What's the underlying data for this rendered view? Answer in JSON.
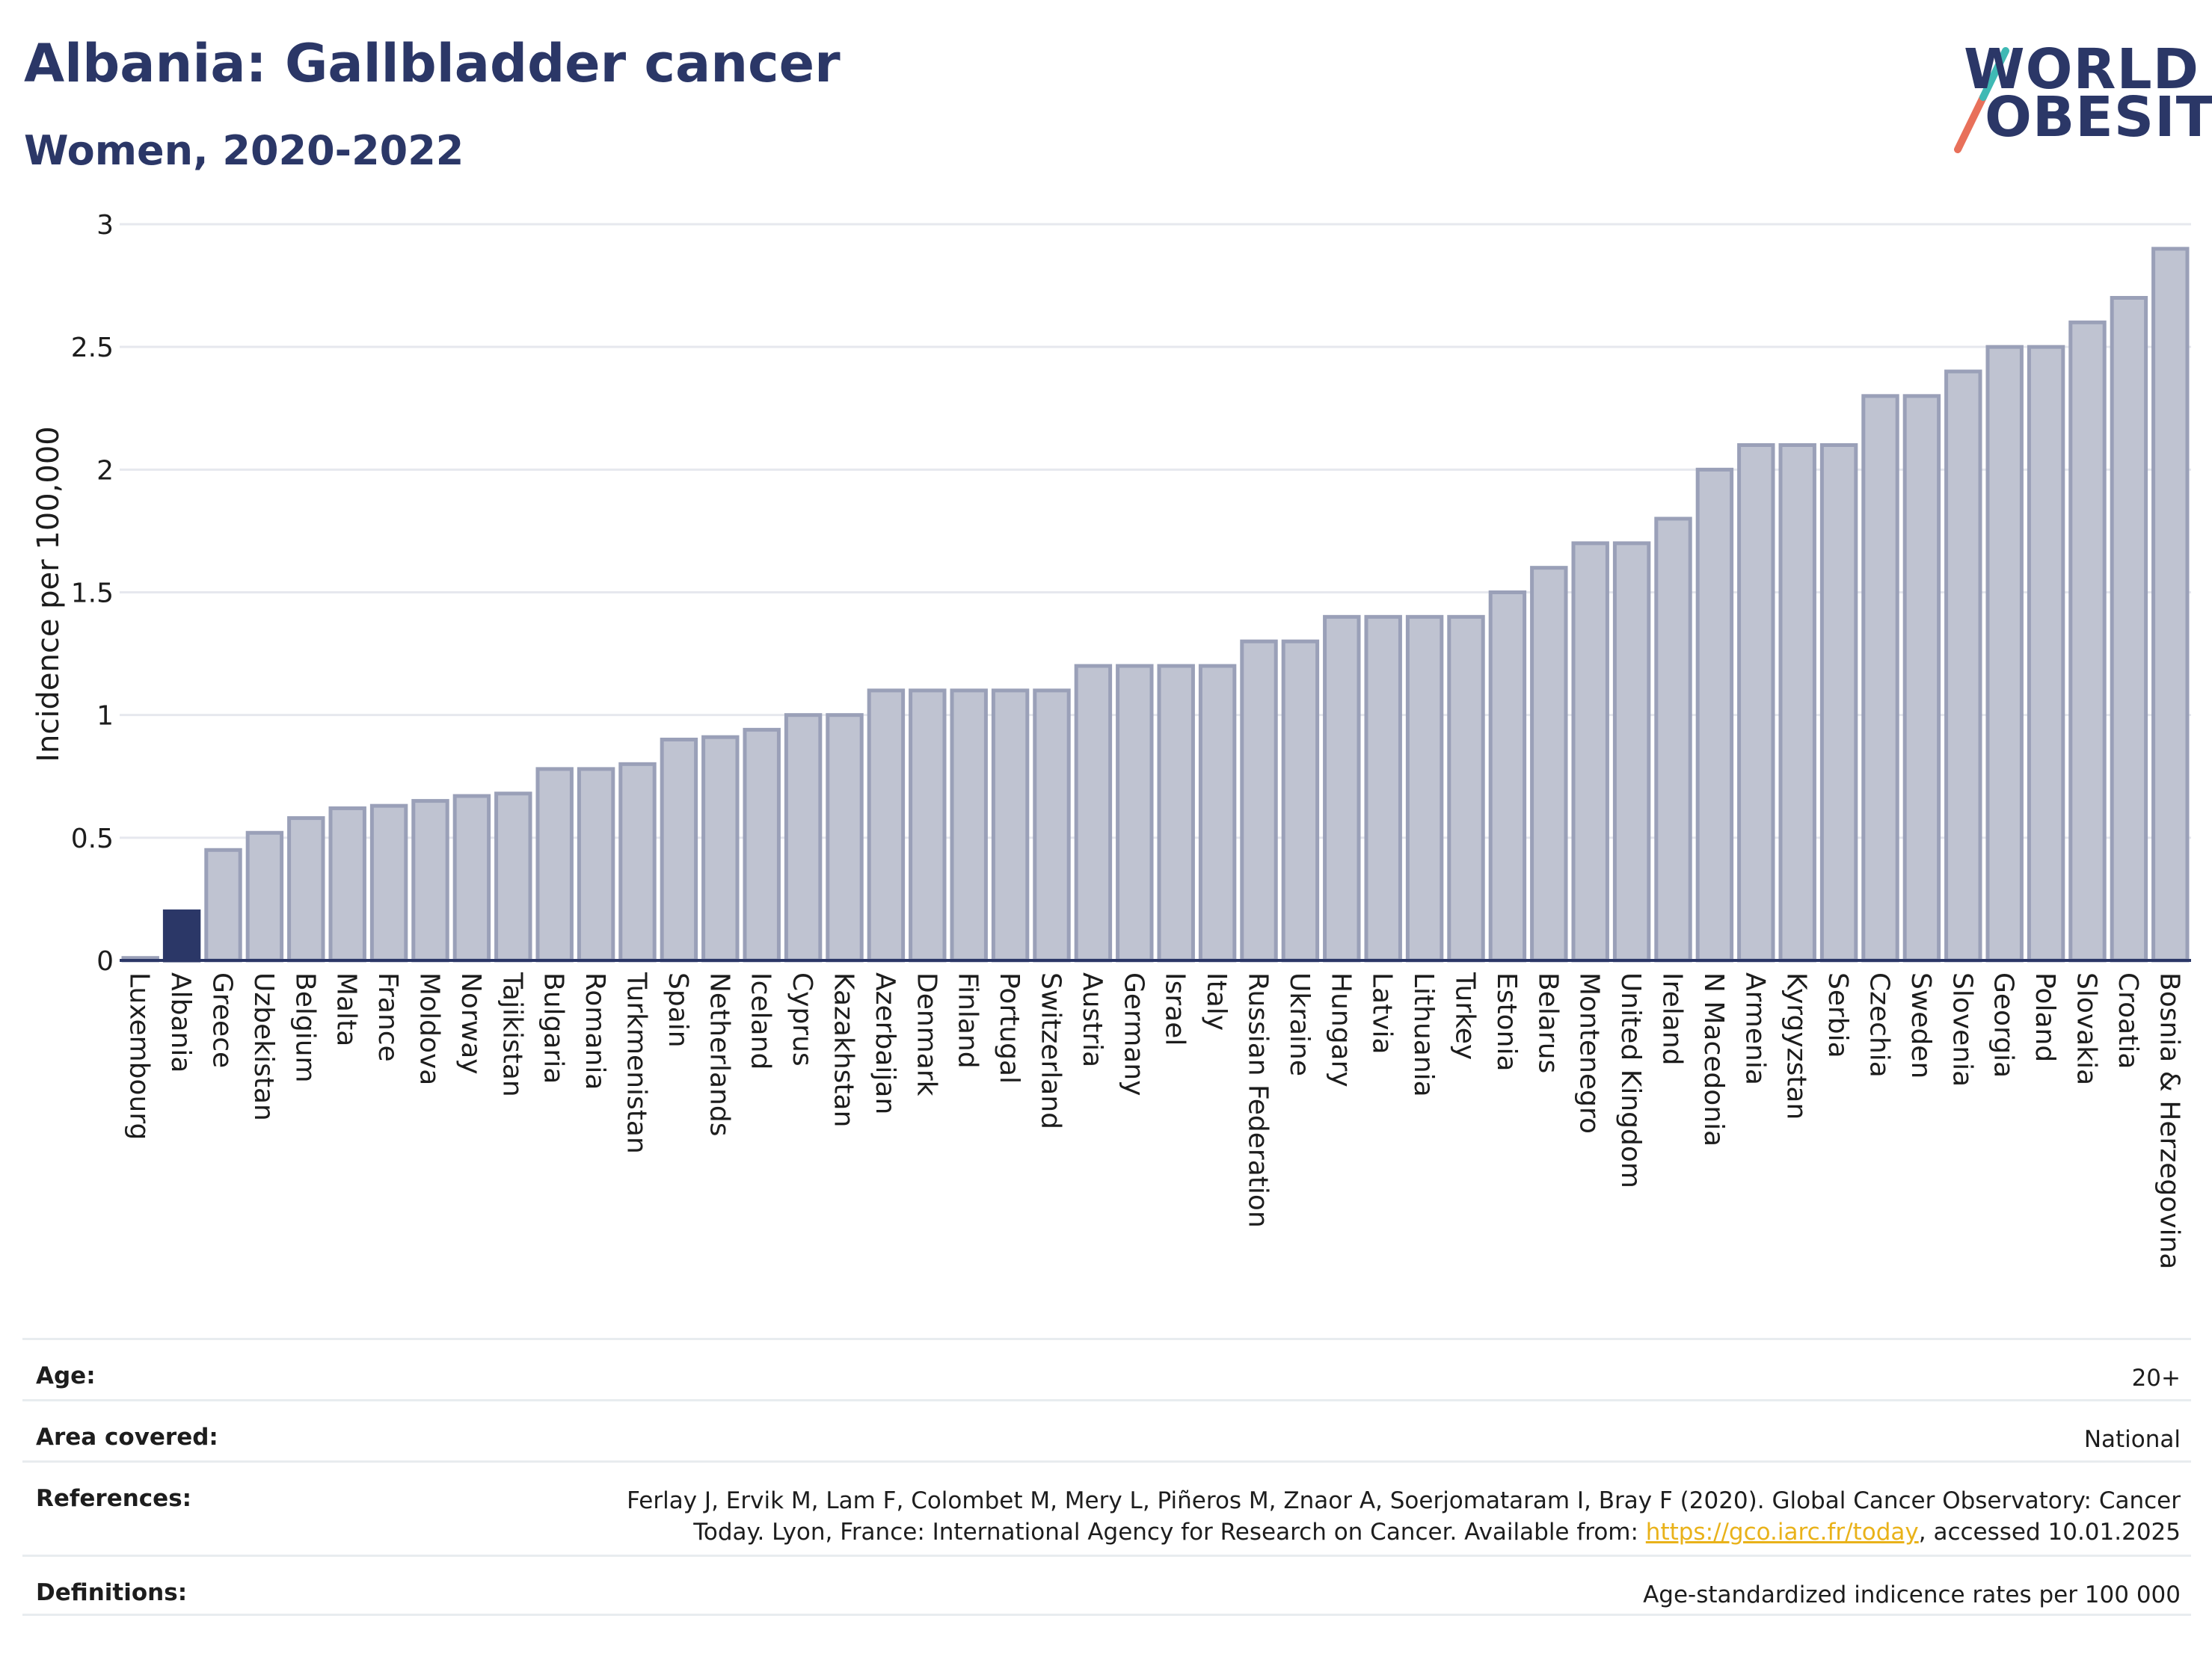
{
  "header": {
    "title": "Albania: Gallbladder cancer",
    "subtitle": "Women, 2020-2022"
  },
  "logo": {
    "line1": "WORLD",
    "line2": "OBESITY",
    "slash_colors": [
      "#e8705a",
      "#3fb9b4"
    ]
  },
  "colors": {
    "highlight_bar": "#2b3767",
    "other_bar_fill": "#bfc3d1",
    "other_bar_stroke": "#9aa0b8",
    "axis": "#2b3767",
    "grid": "#e6e8ee"
  },
  "chart_data": {
    "type": "bar",
    "title": "Albania: Gallbladder cancer",
    "subtitle": "Women, 2020-2022",
    "ylabel": "Incidence per 100,000",
    "xlabel": "",
    "ylim": [
      0,
      3
    ],
    "yticks": [
      0,
      0.5,
      1,
      1.5,
      2,
      2.5,
      3
    ],
    "ytick_labels": [
      "0",
      "0.5",
      "1",
      "1.5",
      "2",
      "2.5",
      "3"
    ],
    "grid": true,
    "highlight": "Albania",
    "categories": [
      "Luxembourg",
      "Albania",
      "Greece",
      "Uzbekistan",
      "Belgium",
      "Malta",
      "France",
      "Moldova",
      "Norway",
      "Tajikistan",
      "Bulgaria",
      "Romania",
      "Turkmenistan",
      "Spain",
      "Netherlands",
      "Iceland",
      "Cyprus",
      "Kazakhstan",
      "Azerbaijan",
      "Denmark",
      "Finland",
      "Portugal",
      "Switzerland",
      "Austria",
      "Germany",
      "Israel",
      "Italy",
      "Russian Federation",
      "Ukraine",
      "Hungary",
      "Latvia",
      "Lithuania",
      "Turkey",
      "Estonia",
      "Belarus",
      "Montenegro",
      "United Kingdom",
      "Ireland",
      "N Macedonia",
      "Armenia",
      "Kyrgyzstan",
      "Serbia",
      "Czechia",
      "Sweden",
      "Slovenia",
      "Georgia",
      "Poland",
      "Slovakia",
      "Croatia",
      "Bosnia & Herzegovina"
    ],
    "values": [
      0.01,
      0.2,
      0.45,
      0.52,
      0.58,
      0.62,
      0.63,
      0.65,
      0.67,
      0.68,
      0.78,
      0.78,
      0.8,
      0.9,
      0.91,
      0.94,
      1.0,
      1.0,
      1.1,
      1.1,
      1.1,
      1.1,
      1.1,
      1.2,
      1.2,
      1.2,
      1.2,
      1.3,
      1.3,
      1.4,
      1.4,
      1.4,
      1.4,
      1.5,
      1.6,
      1.7,
      1.7,
      1.8,
      2.0,
      2.1,
      2.1,
      2.1,
      2.3,
      2.3,
      2.4,
      2.5,
      2.5,
      2.6,
      2.7,
      2.9
    ]
  },
  "info": {
    "age_label": "Age:",
    "age_value": "20+",
    "area_label": "Area covered:",
    "area_value": "National",
    "references_label": "References:",
    "references_text_1": "Ferlay J, Ervik M, Lam F, Colombet M, Mery L, Piñeros M, Znaor A, Soerjomataram I, Bray F (2020). Global Cancer Observatory: Cancer Today. Lyon, France: International Agency for Research on Cancer. Available from: ",
    "references_link": "https://gco.iarc.fr/today",
    "references_text_2": ", accessed 10.01.2025",
    "definitions_label": "Definitions:",
    "definitions_value": "Age-standardized indicence rates per 100 000"
  }
}
